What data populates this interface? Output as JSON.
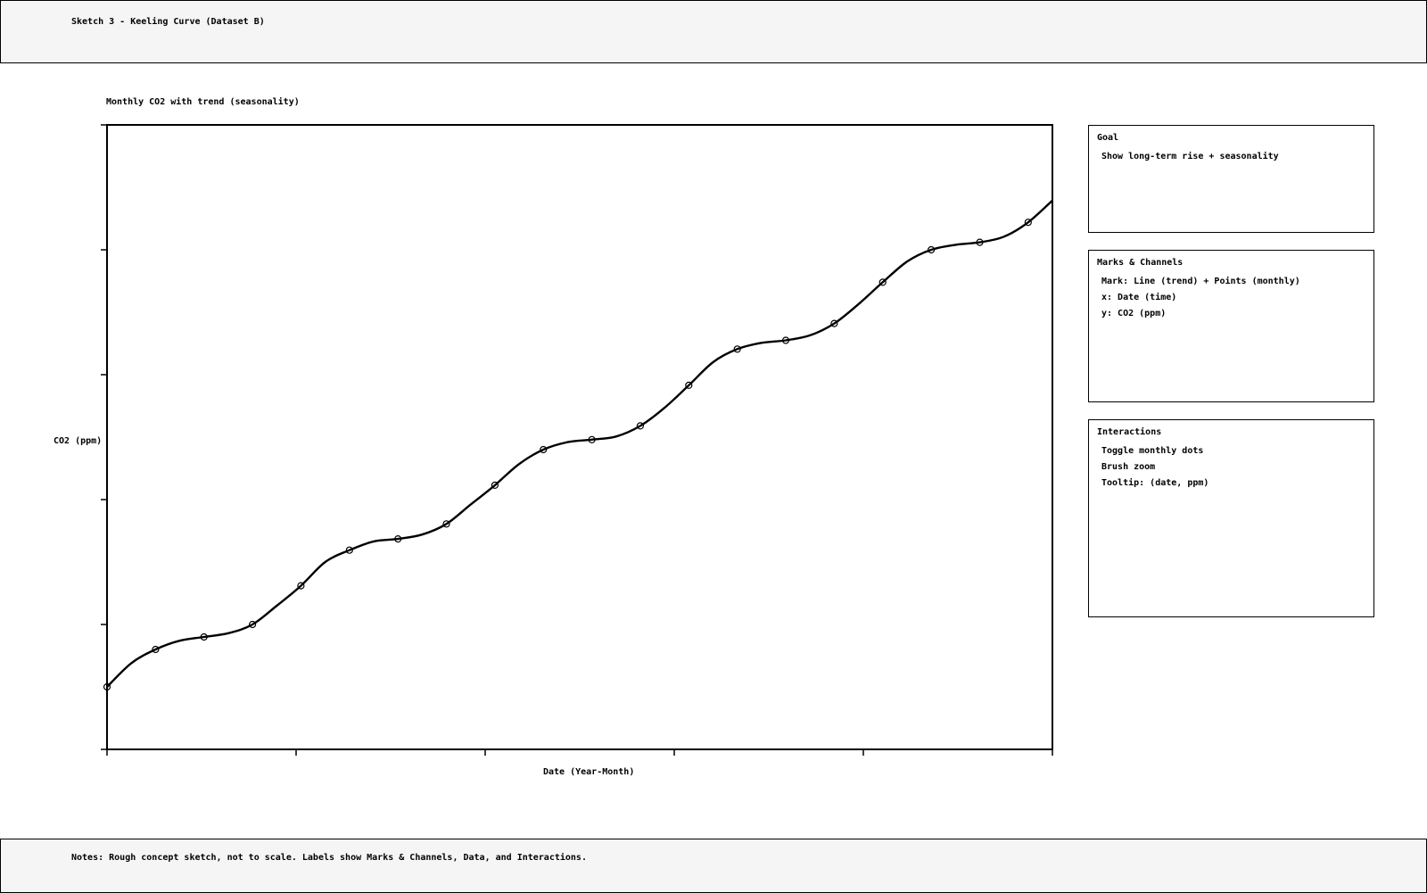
{
  "header": {
    "title": "Sketch 3 - Keeling Curve (Dataset B)"
  },
  "chart": {
    "title": "Monthly CO2 with trend (seasonality)"
  },
  "panels": {
    "goal": {
      "title": "Goal",
      "items": [
        "Show long-term rise + seasonality"
      ]
    },
    "marks": {
      "title": "Marks & Channels",
      "items": [
        "Mark: Line (trend) + Points (monthly)",
        "x: Date (time)",
        "y: CO2 (ppm)"
      ]
    },
    "interactions": {
      "title": "Interactions",
      "items": [
        "Toggle monthly dots",
        "Brush zoom",
        "Tooltip: (date, ppm)"
      ]
    }
  },
  "footer": {
    "notes": "Notes: Rough concept sketch, not to scale. Labels show Marks & Channels, Data, and Interactions."
  },
  "chart_data": {
    "type": "line",
    "title": "Monthly CO2 with trend (seasonality)",
    "xlabel": "Date (Year-Month)",
    "ylabel": "CO2 (ppm)",
    "x": [
      0,
      1,
      2,
      3,
      4,
      5,
      6,
      7,
      8,
      9,
      10,
      11,
      12,
      13,
      14,
      15,
      16,
      17,
      18,
      19,
      20,
      21,
      22,
      23,
      24,
      25,
      26,
      27,
      28,
      29,
      30,
      31,
      32,
      33,
      34,
      35,
      36,
      37,
      38,
      39
    ],
    "xlim": [
      0,
      39
    ],
    "ylim": [
      0,
      1
    ],
    "x_tick_count": 6,
    "y_tick_count": 6,
    "grid": false,
    "series": [
      {
        "values": [
          0.1,
          0.138,
          0.16,
          0.174,
          0.18,
          0.186,
          0.2,
          0.23,
          0.262,
          0.3,
          0.319,
          0.333,
          0.337,
          0.344,
          0.361,
          0.392,
          0.423,
          0.457,
          0.48,
          0.492,
          0.496,
          0.501,
          0.518,
          0.547,
          0.583,
          0.62,
          0.641,
          0.651,
          0.655,
          0.663,
          0.682,
          0.713,
          0.748,
          0.781,
          0.8,
          0.808,
          0.812,
          0.821,
          0.844,
          0.879
        ],
        "points_at": [
          0,
          2,
          4,
          6,
          8,
          10,
          12,
          14,
          16,
          18,
          20,
          22,
          24,
          26,
          28,
          30,
          32,
          34,
          36,
          38
        ]
      }
    ]
  }
}
